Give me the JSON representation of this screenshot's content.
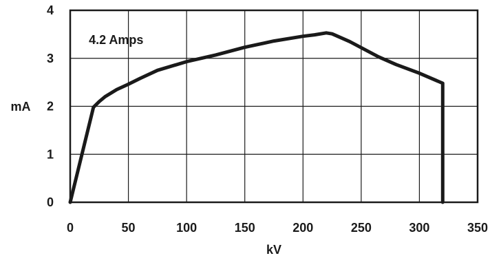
{
  "chart_data": {
    "type": "line",
    "title": "",
    "xlabel": "kV",
    "ylabel": "mA",
    "xlim": [
      0,
      350
    ],
    "ylim": [
      0,
      4
    ],
    "x_ticks": [
      "0",
      "50",
      "100",
      "150",
      "200",
      "250",
      "300",
      "350"
    ],
    "y_ticks": [
      "0",
      "1",
      "2",
      "3",
      "4"
    ],
    "grid": true,
    "annotations": [
      {
        "text": "4.2 Amps",
        "x": 16,
        "y": 3.3
      }
    ],
    "series": [
      {
        "color": "#1a1a1a",
        "points": [
          [
            0,
            0
          ],
          [
            20,
            1.98
          ],
          [
            25,
            2.1
          ],
          [
            30,
            2.2
          ],
          [
            40,
            2.35
          ],
          [
            50,
            2.46
          ],
          [
            60,
            2.58
          ],
          [
            75,
            2.75
          ],
          [
            100,
            2.93
          ],
          [
            125,
            3.07
          ],
          [
            150,
            3.23
          ],
          [
            175,
            3.36
          ],
          [
            200,
            3.46
          ],
          [
            210,
            3.49
          ],
          [
            220,
            3.53
          ],
          [
            225,
            3.51
          ],
          [
            240,
            3.35
          ],
          [
            265,
            3.03
          ],
          [
            280,
            2.87
          ],
          [
            300,
            2.69
          ],
          [
            320,
            2.48
          ],
          [
            320,
            0
          ]
        ]
      }
    ]
  }
}
